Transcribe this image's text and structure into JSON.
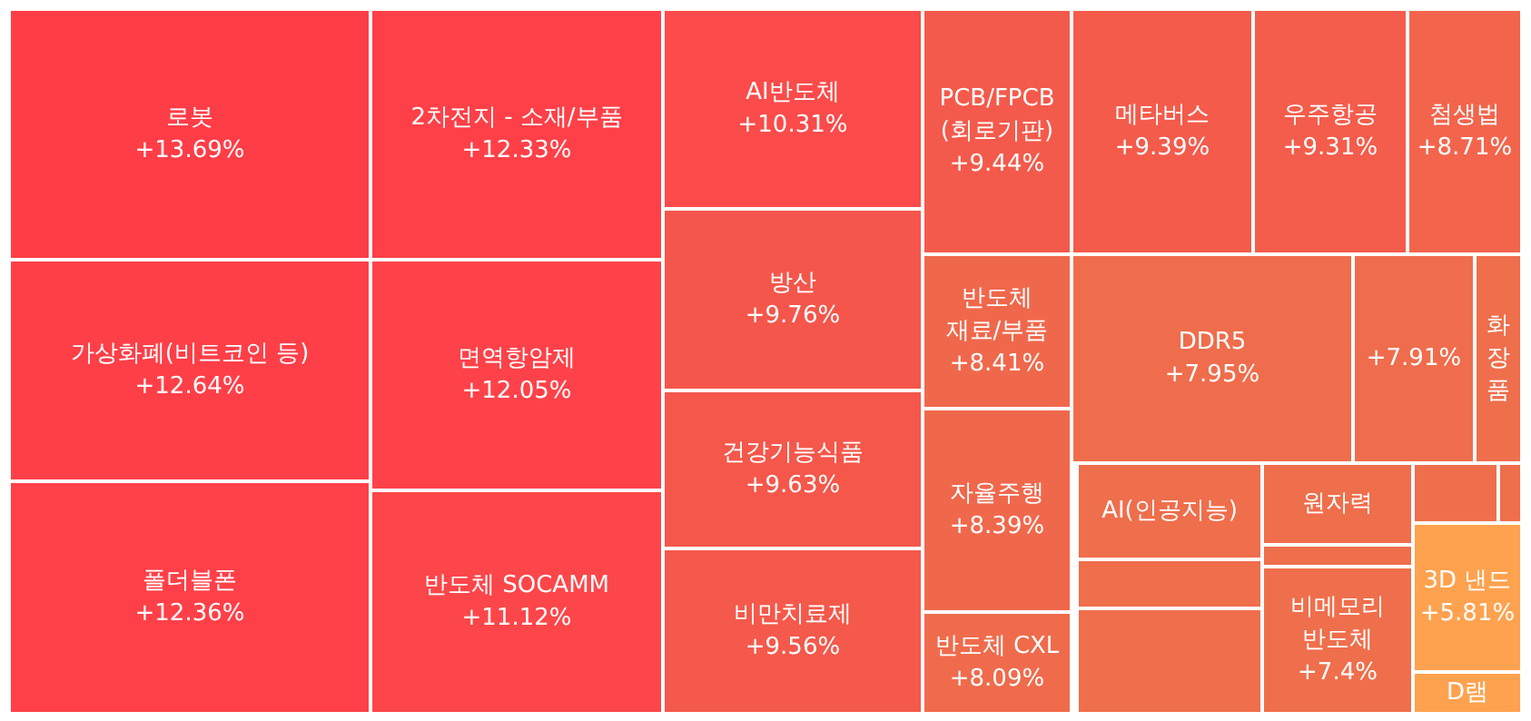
{
  "chart_data": {
    "type": "other",
    "categories": [
      "로봇",
      "가상화폐(비트코인 등)",
      "폴더블폰",
      "2차전지 - 소재/부품",
      "면역항암제",
      "반도체 SOCAMM",
      "AI반도체",
      "방산",
      "건강기능식품",
      "비만치료제",
      "PCB/FPCB (회로기판)",
      "반도체 재료/부품",
      "자율주행",
      "반도체 CXL",
      "메타버스",
      "우주항공",
      "첨생법",
      "DDR5",
      null,
      "화장품",
      "AI(인공지능)",
      null,
      null,
      "원자력",
      null,
      "비메모리 반도체",
      null,
      null,
      "3D 낸드",
      "D램"
    ],
    "values": [
      13.69,
      12.64,
      12.36,
      12.33,
      12.05,
      11.12,
      10.31,
      9.76,
      9.63,
      9.56,
      9.44,
      8.41,
      8.39,
      8.09,
      9.39,
      9.31,
      8.71,
      7.95,
      null,
      null,
      null,
      null,
      null,
      null,
      null,
      7.4,
      null,
      null,
      5.81,
      null
    ],
    "value_labels": [
      "+13.69%",
      "+12.64%",
      "+12.36%",
      "+12.33%",
      "+12.05%",
      "+11.12%",
      "+10.31%",
      "+9.76%",
      "+9.63%",
      "+9.56%",
      "+9.44%",
      "+8.41%",
      "+8.39%",
      "+8.09%",
      "+9.39%",
      "+9.31%",
      "+8.71%",
      "+7.95%",
      "+7.91%",
      null,
      null,
      null,
      null,
      null,
      null,
      "+7.4%",
      null,
      null,
      "+5.81%",
      null
    ],
    "colors": [
      "#ff3d47",
      "#ff3f48",
      "#ff4048",
      "#ff4048",
      "#ff4249",
      "#fd4649",
      "#fb4b4a",
      "#f5564b",
      "#f5574b",
      "#f4594b",
      "#f45a4b",
      "#f0684c",
      "#f0684c",
      "#ef6b4c",
      "#f45b4b",
      "#f45c4b",
      "#f2654c",
      "#ef6d4c",
      "#ef6d4c",
      "#ef6e4c",
      "#ef6e4c",
      "#ef6e4c",
      "#ef6e4c",
      "#ef6e4c",
      "#ef6e4c",
      "#ef6f4c",
      "#ef6e4c",
      "#ef6e4c",
      "#ffa24f",
      "#ffa24f"
    ]
  }
}
